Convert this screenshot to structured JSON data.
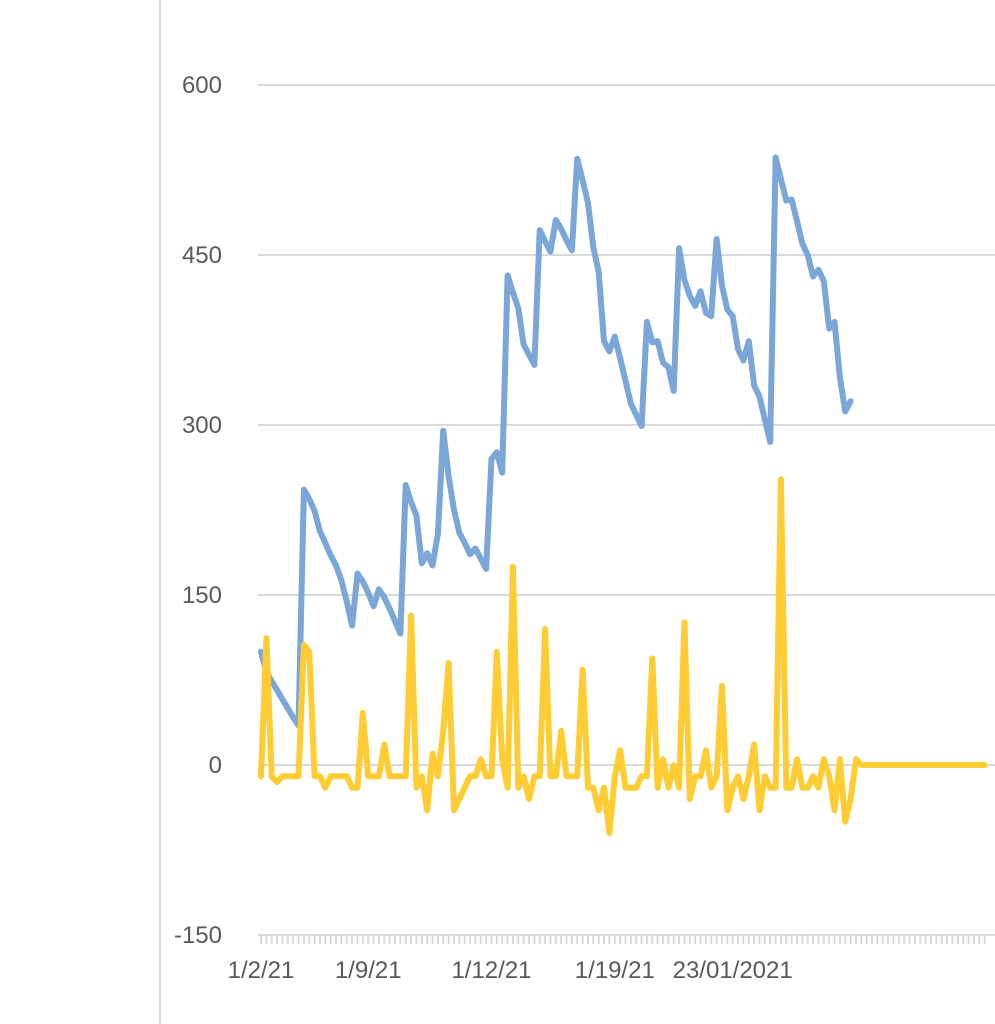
{
  "chart_data": {
    "type": "line",
    "title": "",
    "xlabel": "",
    "ylabel": "",
    "ylim": [
      -150,
      600
    ],
    "yticks": [
      600,
      450,
      300,
      150,
      0,
      -150
    ],
    "ytick_labels": [
      "600",
      "450",
      "300",
      "150",
      "0",
      "-150"
    ],
    "x_tick_labels": [
      {
        "label": "1/2/21",
        "index": 0
      },
      {
        "label": "1/9/21",
        "index": 20
      },
      {
        "label": "1/12/21",
        "index": 43
      },
      {
        "label": "1/19/21",
        "index": 66
      },
      {
        "label": "23/01/2021",
        "index": 88
      }
    ],
    "x_count": 136,
    "grid": true,
    "legend": "none",
    "colors": {
      "series1": "#7aa6d8",
      "series2": "#ffcc33",
      "grid": "#d9d9d9",
      "axis": "#d9d9d9"
    },
    "series": [
      {
        "color": "#7aa6d8",
        "values": [
          100,
          82,
          74,
          66,
          58,
          50,
          42,
          35,
          243,
          235,
          224,
          206,
          196,
          185,
          176,
          163,
          144,
          123,
          169,
          162,
          152,
          140,
          155,
          148,
          138,
          127,
          116,
          247,
          232,
          220,
          178,
          187,
          176,
          204,
          295,
          255,
          225,
          205,
          196,
          186,
          191,
          182,
          173,
          270,
          276,
          258,
          432,
          417,
          403,
          371,
          362,
          353,
          472,
          462,
          453,
          481,
          473,
          463,
          454,
          535,
          516,
          496,
          457,
          435,
          374,
          365,
          378,
          359,
          339,
          319,
          309,
          299,
          391,
          373,
          374,
          355,
          351,
          330,
          456,
          428,
          414,
          405,
          418,
          399,
          396,
          464,
          423,
          402,
          396,
          367,
          357,
          374,
          335,
          325,
          305,
          285,
          536,
          517,
          498,
          499,
          480,
          460,
          450,
          431,
          437,
          427,
          385,
          391,
          342,
          312,
          321
        ]
      },
      {
        "color": "#ffcc33",
        "values": [
          -10,
          112,
          -10,
          -15,
          -10,
          -10,
          -10,
          -10,
          106,
          100,
          -10,
          -10,
          -20,
          -10,
          -10,
          -10,
          -10,
          -20,
          -20,
          46,
          -10,
          -10,
          -10,
          18,
          -10,
          -10,
          -10,
          -10,
          132,
          -20,
          -10,
          -40,
          10,
          -10,
          30,
          90,
          -40,
          -30,
          -20,
          -10,
          -10,
          5,
          -10,
          -10,
          100,
          5,
          -20,
          175,
          -20,
          -10,
          -30,
          -10,
          -10,
          120,
          -10,
          -10,
          30,
          -10,
          -10,
          -10,
          84,
          -20,
          -20,
          -40,
          -20,
          -60,
          -10,
          13,
          -20,
          -20,
          -20,
          -10,
          -10,
          94,
          -20,
          5,
          -20,
          0,
          -20,
          126,
          -30,
          -10,
          -10,
          13,
          -20,
          -10,
          70,
          -40,
          -20,
          -10,
          -30,
          -10,
          18,
          -40,
          -10,
          -20,
          -20,
          252,
          -20,
          -20,
          5,
          -20,
          -20,
          -10,
          -20,
          5,
          -10,
          -40,
          5,
          -50,
          -30,
          5,
          0,
          0,
          0,
          0,
          0,
          0,
          0,
          0,
          0,
          0,
          0,
          0,
          0,
          0,
          0,
          0,
          0,
          0,
          0,
          0,
          0,
          0,
          0,
          0
        ]
      }
    ]
  }
}
